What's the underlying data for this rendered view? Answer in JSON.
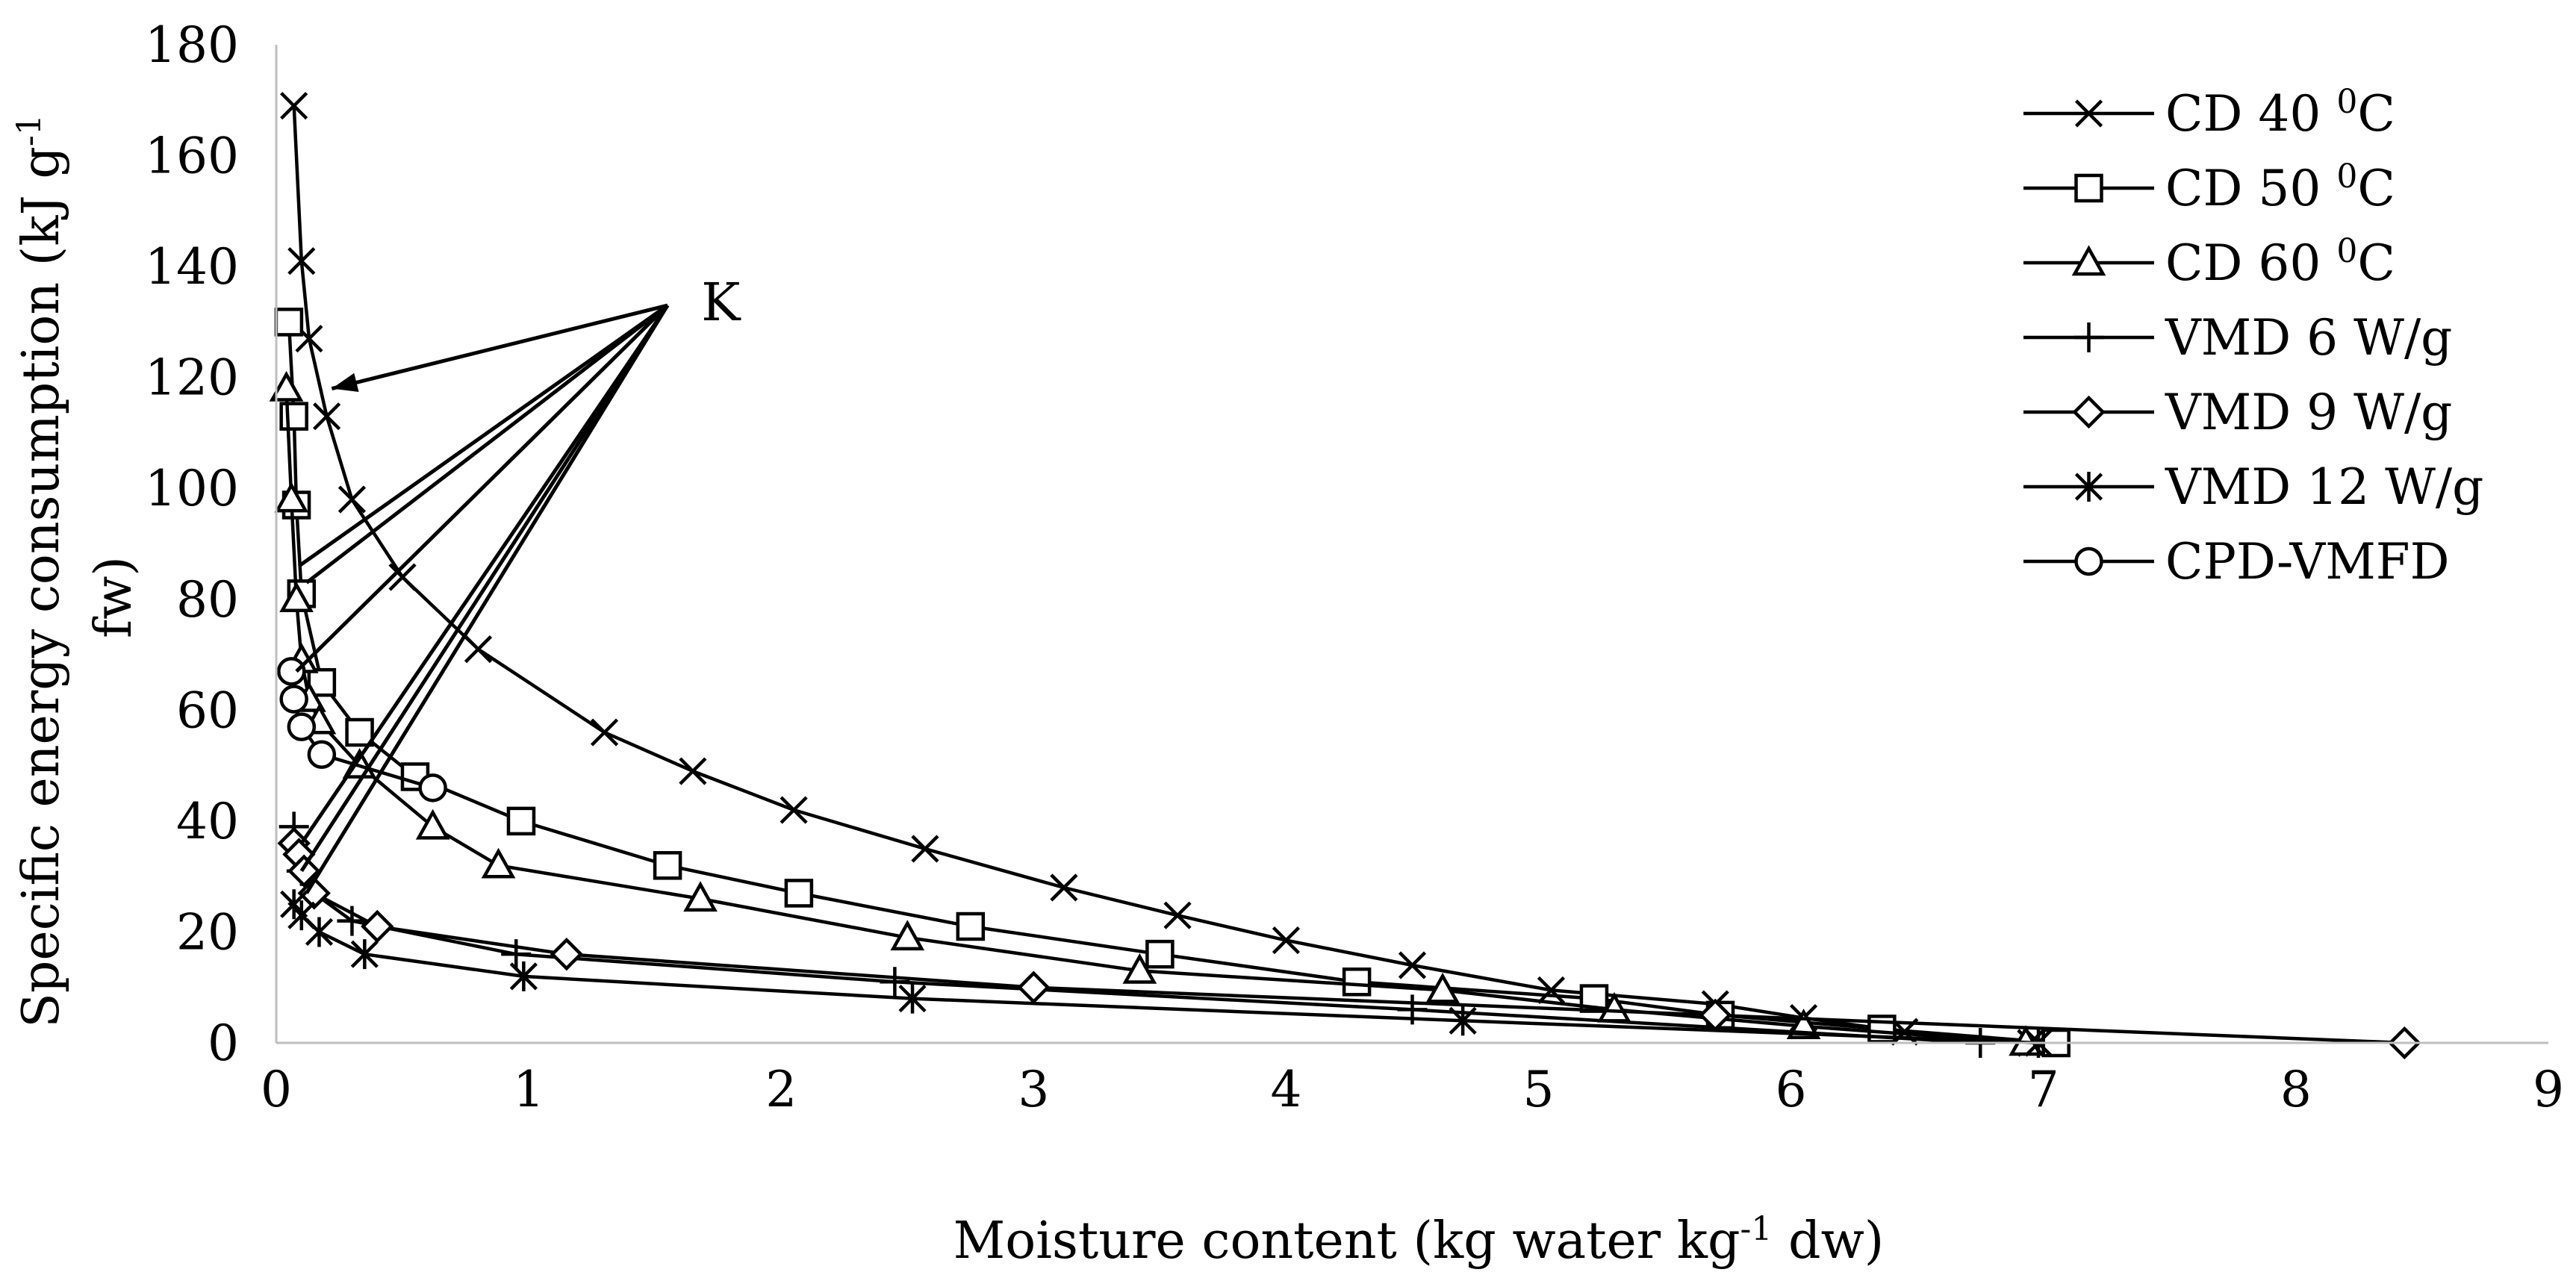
{
  "chart_data": {
    "type": "line",
    "title": "",
    "xlabel": "Moisture content (kg water kg-1 dw)",
    "xlabel_parts": {
      "pre": "Moisture content (kg water kg",
      "sup": "-1",
      "post": " dw)"
    },
    "ylabel": "Specific energy consumption (kJ g-1 fw)",
    "ylabel_parts": {
      "pre": "Specific energy consumption (kJ g",
      "sup": "-1",
      "wrap": "fw)"
    },
    "xlim": [
      0,
      9
    ],
    "ylim": [
      0,
      180
    ],
    "xticks": [
      "0",
      "1",
      "2",
      "3",
      "4",
      "5",
      "6",
      "7",
      "8",
      "9"
    ],
    "yticks": [
      "0",
      "20",
      "40",
      "60",
      "80",
      "100",
      "120",
      "140",
      "160",
      "180"
    ],
    "grid": false,
    "legend_position": "top-right",
    "annotation": {
      "label": "K",
      "tip": [
        1.55,
        133
      ],
      "targets": [
        [
          0.22,
          118
        ],
        [
          0.09,
          86
        ],
        [
          0.12,
          83
        ],
        [
          0.08,
          67
        ],
        [
          0.1,
          36
        ],
        [
          0.1,
          31
        ],
        [
          0.12,
          27
        ]
      ]
    },
    "series": [
      {
        "name": "CD 40 ⁰C",
        "label_parts": {
          "pre": "CD 40 ",
          "sup": "0",
          "post": "C"
        },
        "marker": "x",
        "x": [
          0.07,
          0.1,
          0.13,
          0.2,
          0.3,
          0.5,
          0.8,
          1.3,
          1.65,
          2.05,
          2.57,
          3.12,
          3.57,
          4.0,
          4.5,
          5.05,
          5.7,
          6.05,
          6.45,
          6.95
        ],
        "y": [
          169,
          141,
          127,
          113,
          98,
          84,
          71,
          56,
          49,
          42,
          35,
          28,
          23,
          18.5,
          14,
          9.5,
          7,
          4.5,
          2,
          0
        ]
      },
      {
        "name": "CD 50 ⁰C",
        "label_parts": {
          "pre": "CD 50 ",
          "sup": "0",
          "post": "C"
        },
        "marker": "square",
        "x": [
          0.05,
          0.07,
          0.08,
          0.1,
          0.18,
          0.33,
          0.55,
          0.97,
          1.55,
          2.07,
          2.75,
          3.5,
          4.28,
          5.22,
          5.72,
          6.36,
          7.05
        ],
        "y": [
          130,
          113,
          97,
          81,
          65,
          56,
          48,
          40,
          32,
          27,
          21,
          16,
          11,
          8,
          5,
          2.5,
          0
        ]
      },
      {
        "name": "CD 60 ⁰C",
        "label_parts": {
          "pre": "CD 60 ",
          "sup": "0",
          "post": "C"
        },
        "marker": "triangle",
        "x": [
          0.04,
          0.06,
          0.08,
          0.1,
          0.13,
          0.17,
          0.33,
          0.62,
          0.88,
          1.68,
          2.5,
          3.42,
          4.62,
          5.3,
          6.05,
          6.93
        ],
        "y": [
          118,
          98,
          80,
          69,
          62,
          58,
          50,
          39,
          32,
          26,
          19,
          13,
          9.5,
          6,
          3,
          0
        ]
      },
      {
        "name": "VMD 6 W/g",
        "label_parts": {
          "pre": "VMD 6 W/g",
          "sup": "",
          "post": ""
        },
        "marker": "plus",
        "x": [
          0.07,
          0.1,
          0.15,
          0.3,
          0.95,
          2.45,
          4.5,
          6.75
        ],
        "y": [
          39,
          31,
          27,
          22,
          16,
          11,
          6,
          0
        ]
      },
      {
        "name": "VMD 9 W/g",
        "label_parts": {
          "pre": "VMD 9 W/g",
          "sup": "",
          "post": ""
        },
        "marker": "diamond",
        "x": [
          0.07,
          0.09,
          0.11,
          0.15,
          0.4,
          1.15,
          3.0,
          5.7,
          8.43
        ],
        "y": [
          36,
          34,
          31,
          27,
          21,
          16,
          10,
          5,
          0
        ]
      },
      {
        "name": "VMD 12 W/g",
        "label_parts": {
          "pre": "VMD 12 W/g",
          "sup": "",
          "post": ""
        },
        "marker": "asterisk",
        "x": [
          0.07,
          0.1,
          0.17,
          0.35,
          0.98,
          2.52,
          4.7,
          6.98
        ],
        "y": [
          25,
          23,
          20,
          16,
          12,
          8,
          4,
          0
        ]
      },
      {
        "name": "CPD-VMFD",
        "label_parts": {
          "pre": "CPD-VMFD",
          "sup": "",
          "post": ""
        },
        "marker": "circle",
        "x": [
          0.06,
          0.07,
          0.1,
          0.18,
          0.62
        ],
        "y": [
          67,
          62,
          57,
          52,
          46
        ]
      }
    ]
  }
}
